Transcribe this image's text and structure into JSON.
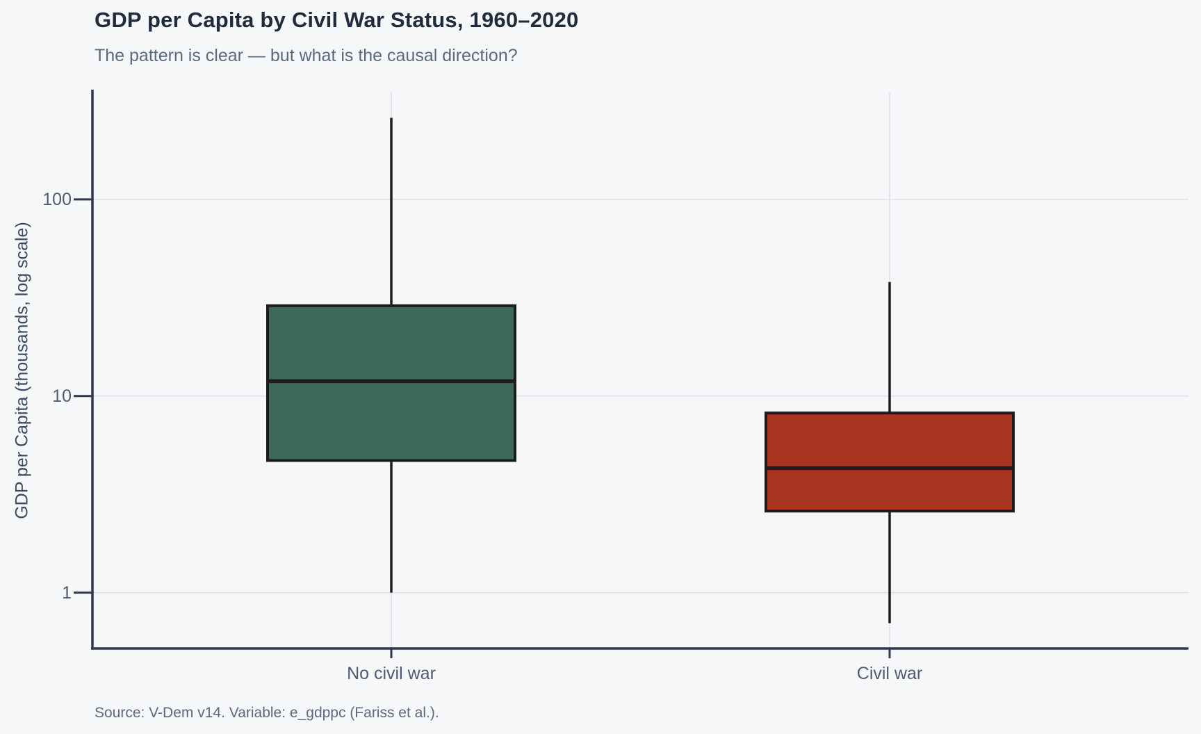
{
  "colors": {
    "background": "#f6f7f9",
    "title_text": "#202b3d",
    "subtitle_text": "#5b6880",
    "axis_text": "#4e5b72",
    "axis_line": "#2d3850",
    "gridline": "#e1e4eb",
    "box_outline": "#1d1d1d",
    "no_civil_war_fill": "#3d695c",
    "civil_war_fill": "#a93521"
  },
  "chart_data": {
    "type": "boxplot",
    "title": "GDP per Capita by Civil War Status, 1960–2020",
    "subtitle": "The pattern is clear — but what is the causal direction?",
    "ylabel": "GDP per Capita (thousands, log scale)",
    "source": "Source: V-Dem v14. Variable: e_gdppc (Fariss et al.).",
    "y_scale": "log10",
    "ylim": [
      0.52,
      350
    ],
    "yticks": [
      {
        "value": 1,
        "label": "1"
      },
      {
        "value": 10,
        "label": "10"
      },
      {
        "value": 100,
        "label": "100"
      }
    ],
    "categories": [
      "No civil war",
      "Civil war"
    ],
    "series": [
      {
        "name": "No civil war",
        "color": "#3d695c",
        "whisker_low": 1.0,
        "q1": 4.7,
        "median": 11.9,
        "q3": 28.8,
        "whisker_high": 260
      },
      {
        "name": "Civil war",
        "color": "#a93521",
        "whisker_low": 0.7,
        "q1": 2.6,
        "median": 4.3,
        "q3": 8.2,
        "whisker_high": 38
      }
    ],
    "grid": "horizontal gridlines at log decades, vertical guide line at each category",
    "legend": "none",
    "outliers": "none shown"
  }
}
